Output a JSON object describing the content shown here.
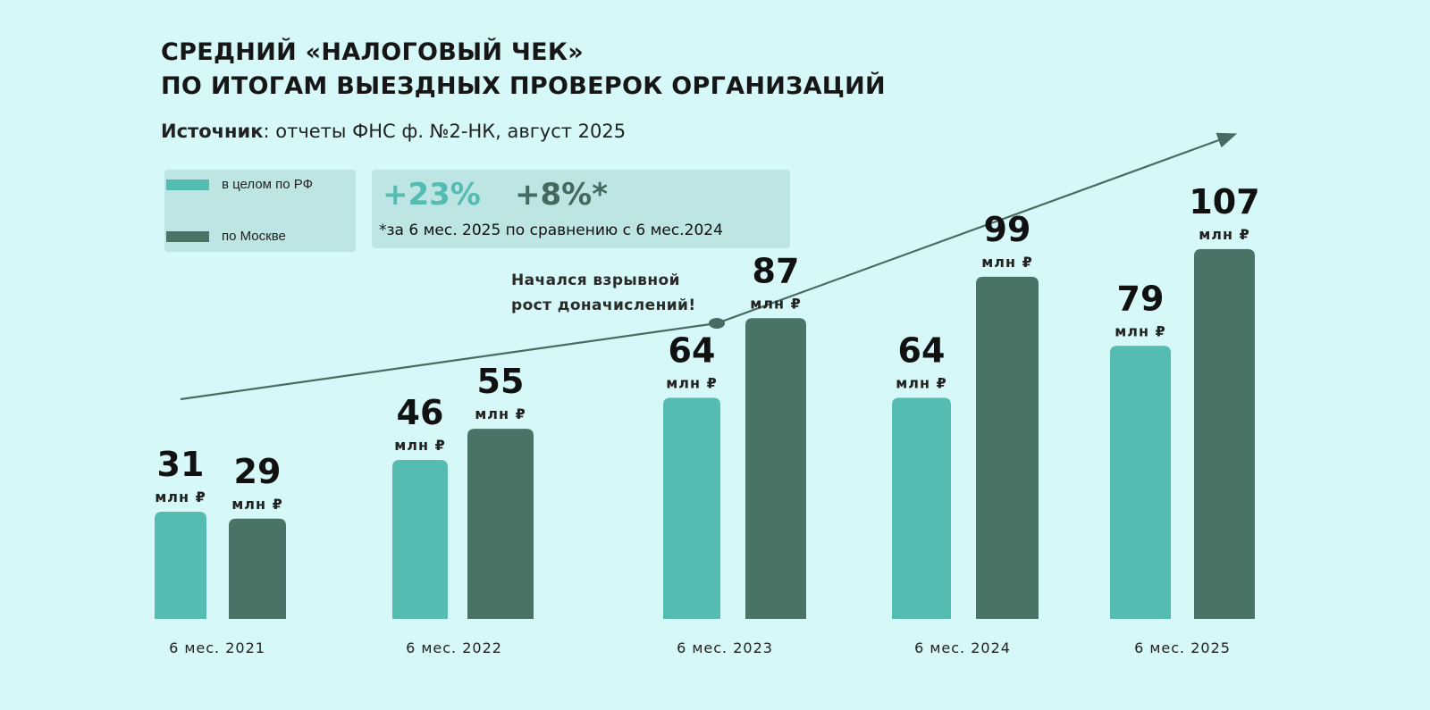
{
  "title_line1": "СРЕДНИЙ «НАЛОГОВЫЙ ЧЕК»",
  "title_line2": "ПО ИТОГАМ ВЫЕЗДНЫХ ПРОВЕРОК ОРГАНИЗАЦИЙ",
  "source_label": "Источник",
  "source_text": ": отчеты ФНС ф. №2-НК, август 2025",
  "growth": {
    "rf": "+23%",
    "moscow": "+8%*",
    "note": "*за 6 мес. 2025 по сравнению с 6 мес.2024"
  },
  "annotation_line1": "Начался взрывной",
  "annotation_line2": "рост доначислений!",
  "colors": {
    "rf": "#55bcb1",
    "moscow": "#4a7367",
    "background": "#d7f8f8",
    "panel": "#bde5e3"
  },
  "chart_data": {
    "type": "bar",
    "title": "СРЕДНИЙ «НАЛОГОВЫЙ ЧЕК» ПО ИТОГАМ ВЫЕЗДНЫХ ПРОВЕРОК ОРГАНИЗАЦИЙ",
    "categories": [
      "6 мес. 2021",
      "6 мес. 2022",
      "6 мес. 2023",
      "6 мес. 2024",
      "6 мес. 2025"
    ],
    "unit": "млн ₽",
    "series": [
      {
        "name": "в целом по РФ",
        "values": [
          31,
          46,
          64,
          64,
          79
        ],
        "color": "#55bcb1"
      },
      {
        "name": "по Москве",
        "values": [
          29,
          55,
          87,
          99,
          107
        ],
        "color": "#4a7367"
      }
    ],
    "ylim": [
      0,
      120
    ],
    "grid": false,
    "legend": "top-left",
    "trend_arrow": true
  }
}
